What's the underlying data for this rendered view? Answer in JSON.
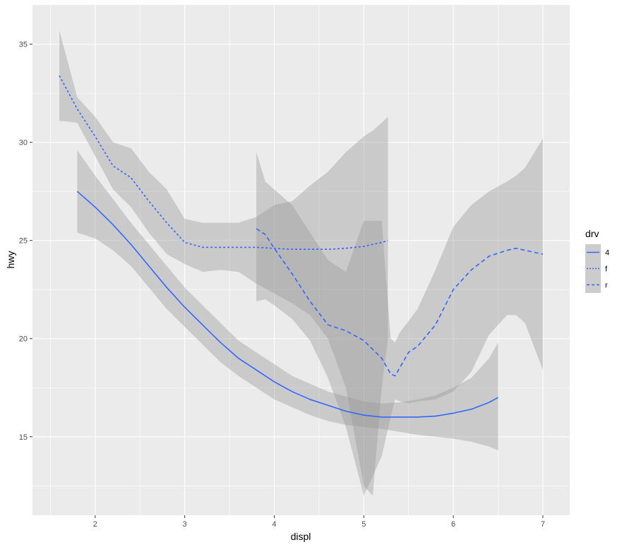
{
  "chart_data": {
    "type": "line",
    "xlabel": "displ",
    "ylabel": "hwy",
    "xlim": [
      1.3,
      7.3
    ],
    "ylim": [
      11.0,
      37.0
    ],
    "x_ticks": [
      2,
      3,
      4,
      5,
      6,
      7
    ],
    "y_ticks": [
      15,
      20,
      25,
      30,
      35
    ],
    "grid": true,
    "legend": {
      "title": "drv",
      "position": "right",
      "entries": [
        "4",
        "f",
        "r"
      ]
    },
    "colors": {
      "panel_bg": "#ebebeb",
      "grid": "#ffffff",
      "line": "#3366ff",
      "ribbon": "#999999"
    },
    "series": [
      {
        "name": "4",
        "linetype": "solid",
        "x": [
          1.8,
          2.0,
          2.2,
          2.4,
          2.6,
          2.8,
          3.0,
          3.2,
          3.4,
          3.6,
          3.8,
          4.0,
          4.2,
          4.4,
          4.6,
          4.8,
          5.0,
          5.2,
          5.4,
          5.6,
          5.8,
          6.0,
          6.2,
          6.4,
          6.5
        ],
        "y": [
          27.5,
          26.7,
          25.8,
          24.8,
          23.7,
          22.6,
          21.6,
          20.7,
          19.8,
          19.0,
          18.4,
          17.8,
          17.3,
          16.9,
          16.6,
          16.3,
          16.1,
          16.0,
          16.0,
          16.0,
          16.05,
          16.2,
          16.4,
          16.75,
          17.0
        ],
        "lower": [
          25.4,
          25.1,
          24.5,
          23.7,
          22.6,
          21.5,
          20.6,
          19.7,
          18.8,
          18.1,
          17.5,
          16.9,
          16.5,
          16.1,
          15.8,
          15.6,
          15.5,
          15.4,
          15.25,
          15.1,
          15.0,
          14.9,
          14.75,
          14.5,
          14.3
        ],
        "upper": [
          29.6,
          28.3,
          27.1,
          25.9,
          24.8,
          23.7,
          22.6,
          21.7,
          20.8,
          19.9,
          19.3,
          18.7,
          18.1,
          17.7,
          17.3,
          17.05,
          16.8,
          16.7,
          16.75,
          16.9,
          17.1,
          17.5,
          18.0,
          19.0,
          19.8
        ]
      },
      {
        "name": "f",
        "linetype": "dotted",
        "x": [
          1.6,
          1.8,
          2.0,
          2.2,
          2.4,
          2.6,
          2.8,
          3.0,
          3.2,
          3.4,
          3.6,
          3.8,
          4.0,
          4.2,
          4.4,
          4.6,
          4.8,
          5.0,
          5.1,
          5.2,
          5.27
        ],
        "y": [
          33.4,
          31.7,
          30.3,
          28.8,
          28.2,
          27.0,
          25.9,
          24.9,
          24.65,
          24.65,
          24.65,
          24.65,
          24.6,
          24.55,
          24.55,
          24.55,
          24.6,
          24.7,
          24.8,
          24.9,
          25.0
        ],
        "lower": [
          31.1,
          31.0,
          29.3,
          27.6,
          26.7,
          25.4,
          24.3,
          23.8,
          23.4,
          23.5,
          23.4,
          22.8,
          22.3,
          21.8,
          21.2,
          20.0,
          17.5,
          12.5,
          12.0,
          17.5,
          20.0
        ],
        "upper": [
          35.7,
          32.3,
          31.3,
          30.0,
          29.7,
          28.5,
          27.6,
          26.1,
          25.9,
          25.9,
          25.9,
          26.2,
          26.8,
          27.0,
          27.8,
          28.5,
          29.5,
          30.3,
          30.6,
          31.0,
          31.3
        ]
      },
      {
        "name": "r",
        "linetype": "dashed",
        "x": [
          3.8,
          3.9,
          4.0,
          4.2,
          4.4,
          4.6,
          4.8,
          5.0,
          5.2,
          5.3,
          5.35,
          5.4,
          5.5,
          5.6,
          5.8,
          6.0,
          6.2,
          6.4,
          6.6,
          6.7,
          6.8,
          7.0
        ],
        "y": [
          25.6,
          25.3,
          24.6,
          23.3,
          21.9,
          20.7,
          20.4,
          19.9,
          19.0,
          18.2,
          18.1,
          18.5,
          19.3,
          19.6,
          20.7,
          22.5,
          23.5,
          24.2,
          24.5,
          24.6,
          24.5,
          24.3
        ],
        "lower": [
          21.9,
          22.0,
          21.7,
          21.0,
          19.9,
          18.0,
          15.5,
          12.0,
          14.0,
          16.0,
          16.9,
          16.8,
          16.7,
          16.8,
          16.9,
          17.3,
          18.3,
          20.2,
          21.2,
          21.2,
          20.8,
          18.4
        ],
        "upper": [
          29.5,
          28.0,
          27.6,
          26.8,
          25.4,
          24.0,
          23.4,
          26.0,
          26.0,
          20.0,
          19.8,
          20.3,
          20.9,
          21.5,
          23.5,
          25.7,
          26.8,
          27.5,
          28.0,
          28.3,
          28.7,
          30.2
        ]
      }
    ]
  }
}
